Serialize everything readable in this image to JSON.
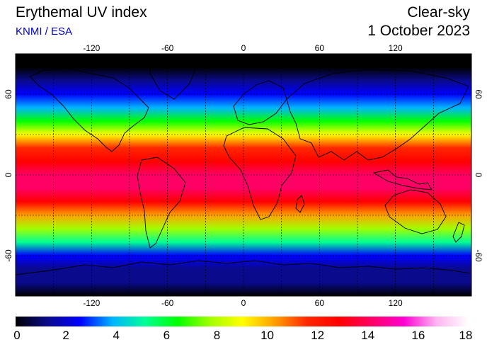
{
  "header": {
    "title": "Erythemal UV index",
    "source": "KNMI / ESA",
    "mode": "Clear-sky",
    "date": "1 October 2023"
  },
  "map": {
    "projection": "equirectangular",
    "lon_range": [
      -180,
      180
    ],
    "lat_range": [
      -90,
      90
    ],
    "lon_ticks": [
      -120,
      -60,
      0,
      60,
      120
    ],
    "lon_tick_labels": [
      "-120",
      "-60",
      "0",
      "60",
      "120"
    ],
    "lat_ticks": [
      60,
      0,
      -60
    ],
    "lat_tick_labels": [
      "60",
      "0",
      "-60"
    ],
    "gridlines": "dashed, every 30 degrees",
    "field": "erythemal UV index by latitude band",
    "uv_profile": [
      {
        "lat": 90,
        "uv": 0
      },
      {
        "lat": 80,
        "uv": 0.3
      },
      {
        "lat": 70,
        "uv": 1
      },
      {
        "lat": 60,
        "uv": 2.2
      },
      {
        "lat": 50,
        "uv": 3.8
      },
      {
        "lat": 40,
        "uv": 5.8
      },
      {
        "lat": 30,
        "uv": 8.5
      },
      {
        "lat": 20,
        "uv": 11
      },
      {
        "lat": 10,
        "uv": 12.8
      },
      {
        "lat": 0,
        "uv": 13.5
      },
      {
        "lat": -10,
        "uv": 13.5
      },
      {
        "lat": -20,
        "uv": 12.5
      },
      {
        "lat": -30,
        "uv": 10
      },
      {
        "lat": -40,
        "uv": 7.2
      },
      {
        "lat": -50,
        "uv": 4.6
      },
      {
        "lat": -60,
        "uv": 2.7
      },
      {
        "lat": -70,
        "uv": 1.6
      },
      {
        "lat": -80,
        "uv": 0.8
      },
      {
        "lat": -90,
        "uv": 0.2
      }
    ]
  },
  "colorbar": {
    "min": 0,
    "max": 18,
    "tick_labels": [
      "0",
      "2",
      "4",
      "6",
      "8",
      "10",
      "12",
      "14",
      "16",
      "18"
    ],
    "colors": [
      "#000000",
      "#0a0a8c",
      "#0000ff",
      "#00b4ff",
      "#00ff96",
      "#00ff00",
      "#a0ff00",
      "#ffff00",
      "#ffa000",
      "#ff2800",
      "#ff0000",
      "#ff0064",
      "#ff00d2",
      "#ffb4f0",
      "#ffffff"
    ]
  }
}
